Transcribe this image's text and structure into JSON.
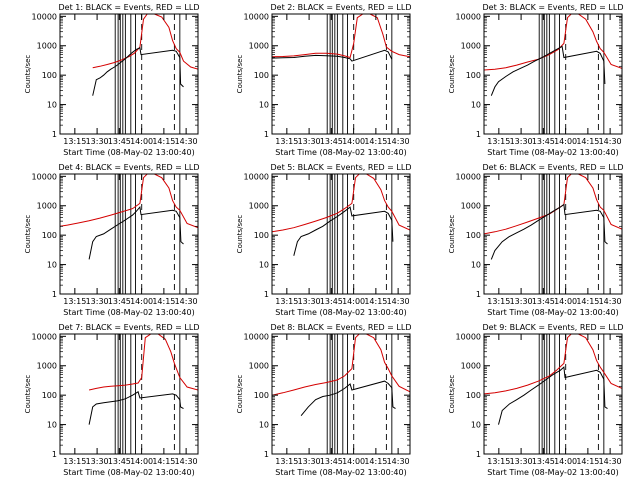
{
  "figure": {
    "start_time_label": "Start Time (08-May-02 13:00:40)",
    "ylabel": "Counts/sec",
    "x_ticks": [
      "13:15",
      "13:30",
      "13:45",
      "14:00",
      "14:15",
      "14:30"
    ],
    "y_ticks": [
      "1",
      "10",
      "100",
      "1000",
      "10000"
    ],
    "legend_text": "BLACK = Events, RED = LLD",
    "colors": {
      "events": "#000000",
      "lld": "#d40000",
      "axes": "#000000"
    }
  },
  "chart_data": [
    {
      "type": "line",
      "title": "Det 1: BLACK = Events, RED = LLD",
      "xlabel": "Start Time (08-May-02 13:00:40)",
      "ylabel": "Counts/sec",
      "x_unit": "minutes after 13:00",
      "xlim": [
        0,
        38
      ],
      "ylim": [
        1,
        12000
      ],
      "y_scale": "log",
      "vlines_solid": [
        15.2,
        16.0,
        16.6,
        17.3,
        18.0,
        19.5,
        20.8,
        33.0
      ],
      "vlines_dashed": [
        22.5,
        31.5
      ],
      "series": [
        {
          "name": "RED = LLD",
          "color": "#d40000",
          "x": [
            9,
            11,
            13,
            15,
            17,
            19,
            20.5,
            22,
            23,
            24,
            26,
            28,
            30,
            31,
            32,
            33,
            34,
            36,
            38
          ],
          "y": [
            180,
            200,
            230,
            270,
            330,
            430,
            560,
            900,
            8000,
            12000,
            12000,
            9500,
            4200,
            1500,
            800,
            600,
            300,
            190,
            160
          ]
        },
        {
          "name": "BLACK = Events",
          "color": "#000000",
          "x": [
            9,
            10,
            11,
            12,
            13,
            14,
            15,
            16,
            17,
            18,
            19,
            20,
            21,
            22,
            22.3,
            31,
            32,
            33,
            33.2,
            34
          ],
          "y": [
            20,
            70,
            80,
            100,
            130,
            160,
            190,
            230,
            290,
            360,
            470,
            600,
            750,
            850,
            500,
            700,
            650,
            400,
            50,
            40
          ]
        }
      ]
    },
    {
      "type": "line",
      "title": "Det 2: BLACK = Events, RED = LLD",
      "xlabel": "Start Time (08-May-02 13:00:40)",
      "ylabel": "Counts/sec",
      "x_unit": "minutes after 13:00",
      "xlim": [
        0,
        38
      ],
      "ylim": [
        1,
        12000
      ],
      "y_scale": "log",
      "vlines_solid": [
        15.2,
        16.0,
        16.6,
        17.3,
        18.0,
        19.5,
        20.8,
        33.0
      ],
      "vlines_dashed": [
        22.5,
        31.5
      ],
      "series": [
        {
          "name": "RED = LLD",
          "color": "#d40000",
          "x": [
            0,
            3,
            6,
            9,
            12,
            15,
            18,
            20,
            21.5,
            22.5,
            23.5,
            25,
            27,
            29,
            30.5,
            31.5,
            33,
            35,
            38
          ],
          "y": [
            420,
            430,
            450,
            500,
            560,
            560,
            520,
            450,
            400,
            1200,
            9000,
            12000,
            12000,
            9000,
            2500,
            900,
            650,
            500,
            420
          ]
        },
        {
          "name": "BLACK = Events",
          "color": "#000000",
          "x": [
            0,
            3,
            6,
            9,
            12,
            15,
            18,
            20,
            21.5,
            22,
            31,
            32,
            33
          ],
          "y": [
            380,
            390,
            400,
            440,
            470,
            460,
            440,
            400,
            360,
            300,
            700,
            620,
            350
          ]
        }
      ]
    },
    {
      "type": "line",
      "title": "Det 3: BLACK = Events, RED = LLD",
      "xlabel": "Start Time (08-May-02 13:00:40)",
      "ylabel": "Counts/sec",
      "x_unit": "minutes after 13:00",
      "xlim": [
        0,
        38
      ],
      "ylim": [
        1,
        12000
      ],
      "y_scale": "log",
      "vlines_solid": [
        15.2,
        16.0,
        16.6,
        17.3,
        18.0,
        19.5,
        20.8,
        33.0
      ],
      "vlines_dashed": [
        22.5,
        31.5
      ],
      "series": [
        {
          "name": "RED = LLD",
          "color": "#d40000",
          "x": [
            0,
            3,
            6,
            9,
            12,
            15,
            18,
            20.5,
            22,
            23,
            24,
            26,
            28,
            30,
            31,
            32,
            33,
            35,
            38
          ],
          "y": [
            150,
            160,
            180,
            220,
            280,
            350,
            500,
            750,
            1200,
            9000,
            12000,
            12000,
            8000,
            3000,
            1400,
            800,
            600,
            230,
            170
          ]
        },
        {
          "name": "BLACK = Events",
          "color": "#000000",
          "x": [
            2,
            3,
            4,
            6,
            8,
            10,
            12,
            14,
            16,
            18,
            20,
            21.5,
            22,
            31,
            32,
            33,
            33.3
          ],
          "y": [
            20,
            40,
            60,
            90,
            130,
            170,
            220,
            300,
            400,
            550,
            750,
            950,
            400,
            650,
            550,
            300,
            50
          ]
        }
      ]
    },
    {
      "type": "line",
      "title": "Det 4: BLACK = Events, RED = LLD",
      "xlabel": "Start Time (08-May-02 13:00:40)",
      "ylabel": "Counts/sec",
      "x_unit": "minutes after 13:00",
      "xlim": [
        0,
        38
      ],
      "ylim": [
        1,
        12000
      ],
      "y_scale": "log",
      "vlines_solid": [
        15.2,
        16.0,
        16.6,
        17.3,
        18.0,
        19.5,
        20.8,
        33.0
      ],
      "vlines_dashed": [
        22.5,
        31.5
      ],
      "series": [
        {
          "name": "RED = LLD",
          "color": "#d40000",
          "x": [
            0,
            2,
            5,
            8,
            11,
            14,
            17,
            20,
            22,
            23,
            24,
            26,
            28,
            30,
            31,
            32,
            33,
            35,
            38
          ],
          "y": [
            200,
            220,
            260,
            310,
            380,
            480,
            620,
            800,
            1200,
            9000,
            12000,
            12000,
            9000,
            4000,
            1500,
            900,
            700,
            250,
            180
          ]
        },
        {
          "name": "BLACK = Events",
          "color": "#000000",
          "x": [
            8,
            9,
            10,
            12,
            14,
            16,
            18,
            20,
            21,
            22,
            22.3,
            31,
            32,
            33,
            33.3,
            34
          ],
          "y": [
            15,
            60,
            90,
            110,
            160,
            230,
            330,
            480,
            650,
            900,
            500,
            700,
            650,
            400,
            60,
            50
          ]
        }
      ]
    },
    {
      "type": "line",
      "title": "Det 5: BLACK = Events, RED = LLD",
      "xlabel": "Start Time (08-May-02 13:00:40)",
      "ylabel": "Counts/sec",
      "x_unit": "minutes after 13:00",
      "xlim": [
        0,
        38
      ],
      "ylim": [
        1,
        12000
      ],
      "y_scale": "log",
      "vlines_solid": [
        15.2,
        16.0,
        16.6,
        17.3,
        18.0,
        19.5,
        20.8,
        33.0
      ],
      "vlines_dashed": [
        22.5,
        31.5
      ],
      "series": [
        {
          "name": "RED = LLD",
          "color": "#d40000",
          "x": [
            0,
            3,
            6,
            9,
            12,
            15,
            18,
            20,
            22,
            23,
            24,
            26,
            28,
            30,
            31,
            32,
            33,
            35,
            38
          ],
          "y": [
            130,
            150,
            180,
            230,
            300,
            400,
            560,
            800,
            1200,
            9000,
            12000,
            12000,
            8500,
            3500,
            1500,
            900,
            650,
            220,
            150
          ]
        },
        {
          "name": "BLACK = Events",
          "color": "#000000",
          "x": [
            6,
            7,
            8,
            10,
            12,
            14,
            16,
            18,
            20,
            21.5,
            22,
            31,
            32,
            33,
            33.3
          ],
          "y": [
            20,
            60,
            90,
            110,
            150,
            200,
            300,
            430,
            650,
            900,
            450,
            650,
            550,
            320,
            60
          ]
        }
      ]
    },
    {
      "type": "line",
      "title": "Det 6: BLACK = Events, RED = LLD",
      "xlabel": "Start Time (08-May-02 13:00:40)",
      "ylabel": "Counts/sec",
      "x_unit": "minutes after 13:00",
      "xlim": [
        0,
        38
      ],
      "ylim": [
        1,
        12000
      ],
      "y_scale": "log",
      "vlines_solid": [
        15.2,
        16.0,
        16.6,
        17.3,
        18.0,
        19.5,
        20.8,
        33.0
      ],
      "vlines_dashed": [
        22.5,
        31.5
      ],
      "series": [
        {
          "name": "RED = LLD",
          "color": "#d40000",
          "x": [
            0,
            3,
            6,
            9,
            12,
            15,
            18,
            20,
            22,
            23,
            24,
            26,
            28,
            30,
            31,
            32,
            33,
            35,
            38
          ],
          "y": [
            110,
            130,
            160,
            210,
            280,
            380,
            520,
            750,
            1100,
            9000,
            12000,
            12000,
            9000,
            4000,
            1600,
            900,
            700,
            230,
            160
          ]
        },
        {
          "name": "BLACK = Events",
          "color": "#000000",
          "x": [
            2,
            3,
            5,
            7,
            9,
            11,
            13,
            15,
            17,
            19,
            21,
            22,
            22.3,
            31,
            32,
            33,
            33.3,
            34
          ],
          "y": [
            15,
            30,
            60,
            90,
            120,
            160,
            220,
            320,
            450,
            650,
            900,
            1100,
            500,
            700,
            650,
            400,
            60,
            50
          ]
        }
      ]
    },
    {
      "type": "line",
      "title": "Det 7: BLACK = Events, RED = LLD",
      "xlabel": "Start Time (08-May-02 13:00:40)",
      "ylabel": "Counts/sec",
      "x_unit": "minutes after 13:00",
      "xlim": [
        0,
        38
      ],
      "ylim": [
        1,
        12000
      ],
      "y_scale": "log",
      "vlines_solid": [
        15.2,
        16.0,
        16.6,
        17.3,
        18.0,
        19.5,
        20.8,
        33.0
      ],
      "vlines_dashed": [
        22.5,
        31.5
      ],
      "series": [
        {
          "name": "RED = LLD",
          "color": "#d40000",
          "x": [
            8,
            10,
            12,
            14,
            16,
            18,
            20,
            21.5,
            22.5,
            23.5,
            25,
            27,
            29,
            30.5,
            31.5,
            33,
            35,
            38
          ],
          "y": [
            150,
            170,
            190,
            200,
            210,
            220,
            240,
            260,
            400,
            9000,
            12000,
            12000,
            8000,
            3000,
            1200,
            400,
            190,
            150
          ]
        },
        {
          "name": "BLACK = Events",
          "color": "#000000",
          "x": [
            8,
            9,
            10,
            12,
            14,
            16,
            18,
            20,
            21.5,
            22,
            31,
            32,
            33,
            33.2,
            34
          ],
          "y": [
            10,
            40,
            50,
            55,
            60,
            65,
            75,
            100,
            130,
            80,
            110,
            100,
            70,
            40,
            35
          ]
        }
      ]
    },
    {
      "type": "line",
      "title": "Det 8: BLACK = Events, RED = LLD",
      "xlabel": "Start Time (08-May-02 13:00:40)",
      "ylabel": "Counts/sec",
      "x_unit": "minutes after 13:00",
      "xlim": [
        0,
        38
      ],
      "ylim": [
        1,
        12000
      ],
      "y_scale": "log",
      "vlines_solid": [
        15.2,
        16.0,
        16.6,
        17.3,
        18.0,
        19.5,
        20.8,
        33.0
      ],
      "vlines_dashed": [
        22.5,
        31.5
      ],
      "series": [
        {
          "name": "RED = LLD",
          "color": "#d40000",
          "x": [
            0,
            3,
            6,
            9,
            12,
            15,
            18,
            20,
            22,
            23,
            24,
            26,
            28,
            30,
            31,
            32,
            33,
            35,
            38
          ],
          "y": [
            100,
            120,
            150,
            190,
            230,
            270,
            330,
            450,
            800,
            9000,
            12000,
            12000,
            9000,
            3500,
            1300,
            800,
            450,
            200,
            130
          ]
        },
        {
          "name": "BLACK = Events",
          "color": "#000000",
          "x": [
            8,
            10,
            12,
            14,
            16,
            18,
            20,
            21.5,
            22,
            31,
            32,
            33,
            33.3,
            34
          ],
          "y": [
            20,
            40,
            70,
            90,
            100,
            120,
            170,
            240,
            150,
            300,
            250,
            180,
            40,
            35
          ]
        }
      ]
    },
    {
      "type": "line",
      "title": "Det 9: BLACK = Events, RED = LLD",
      "xlabel": "Start Time (08-May-02 13:00:40)",
      "ylabel": "Counts/sec",
      "x_unit": "minutes after 13:00",
      "xlim": [
        0,
        38
      ],
      "ylim": [
        1,
        12000
      ],
      "y_scale": "log",
      "vlines_solid": [
        15.2,
        16.0,
        16.6,
        17.3,
        18.0,
        19.5,
        20.8,
        33.0
      ],
      "vlines_dashed": [
        22.5,
        31.5
      ],
      "series": [
        {
          "name": "RED = LLD",
          "color": "#d40000",
          "x": [
            0,
            3,
            6,
            9,
            12,
            15,
            18,
            20,
            22,
            23,
            24,
            26,
            28,
            30,
            31,
            32,
            33,
            35,
            38
          ],
          "y": [
            110,
            120,
            140,
            170,
            220,
            300,
            450,
            700,
            1200,
            9000,
            12000,
            12000,
            9000,
            3500,
            1500,
            900,
            600,
            250,
            170
          ]
        },
        {
          "name": "BLACK = Events",
          "color": "#000000",
          "x": [
            4,
            5,
            7,
            9,
            11,
            13,
            15,
            17,
            19,
            21,
            22,
            22.3,
            31,
            32,
            33,
            33.3,
            34
          ],
          "y": [
            10,
            30,
            50,
            70,
            100,
            150,
            220,
            330,
            500,
            700,
            900,
            400,
            700,
            600,
            350,
            40,
            35
          ]
        }
      ]
    }
  ]
}
